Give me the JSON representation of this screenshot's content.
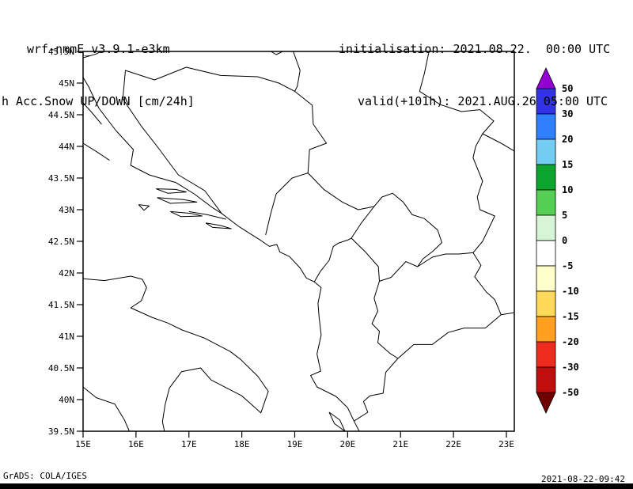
{
  "header": {
    "model": "wrf-nmmE_v3.9.1-e3km",
    "product": "h Acc.Snow UP/DOWN [cm/24h]",
    "init_label": "initialisation: 2021.08.22.  00:00 UTC",
    "valid_label": "valid(+101h): 2021.AUG.26 05:00 UTC"
  },
  "footer": {
    "credit": "GrADS: COLA/IGES",
    "timestamp": "2021-08-22-09:42"
  },
  "map": {
    "lat_ticks": [
      "45.5N",
      "45N",
      "44.5N",
      "44N",
      "43.5N",
      "43N",
      "42.5N",
      "42N",
      "41.5N",
      "41N",
      "40.5N",
      "40N",
      "39.5N"
    ],
    "lon_ticks": [
      "15E",
      "16E",
      "17E",
      "18E",
      "19E",
      "20E",
      "21E",
      "22E",
      "23E"
    ],
    "lat_range": [
      39.5,
      45.5
    ],
    "lon_range": [
      15,
      23.15
    ],
    "outline_color": "#000000",
    "outlines": {
      "adriatic_east_coast": [
        [
          14.85,
          45.3
        ],
        [
          15.1,
          44.95
        ],
        [
          15.3,
          44.6
        ],
        [
          15.62,
          44.25
        ],
        [
          15.95,
          43.95
        ],
        [
          15.9,
          43.7
        ],
        [
          16.25,
          43.55
        ],
        [
          16.45,
          43.5
        ],
        [
          16.75,
          43.43
        ],
        [
          17.1,
          43.25
        ],
        [
          17.45,
          43.03
        ],
        [
          17.62,
          42.94
        ],
        [
          17.95,
          42.73
        ],
        [
          18.12,
          42.64
        ],
        [
          18.35,
          42.52
        ],
        [
          18.52,
          42.42
        ],
        [
          18.66,
          42.45
        ],
        [
          18.72,
          42.33
        ],
        [
          18.9,
          42.26
        ],
        [
          19.1,
          42.08
        ],
        [
          19.22,
          41.92
        ],
        [
          19.37,
          41.86
        ],
        [
          19.5,
          41.77
        ],
        [
          19.44,
          41.52
        ],
        [
          19.46,
          41.3
        ],
        [
          19.5,
          41.02
        ],
        [
          19.42,
          40.72
        ],
        [
          19.49,
          40.45
        ],
        [
          19.3,
          40.38
        ],
        [
          19.42,
          40.2
        ],
        [
          19.78,
          40.05
        ],
        [
          20.0,
          39.87
        ],
        [
          20.12,
          39.66
        ],
        [
          20.25,
          39.45
        ]
      ],
      "island_pag": [
        [
          14.9,
          44.78
        ],
        [
          15.15,
          44.55
        ],
        [
          15.35,
          44.35
        ]
      ],
      "island_dugi_otok": [
        [
          15.0,
          44.05
        ],
        [
          15.25,
          43.92
        ],
        [
          15.5,
          43.78
        ]
      ],
      "island_brac": [
        [
          16.38,
          43.33
        ],
        [
          16.75,
          43.32
        ],
        [
          16.95,
          43.28
        ],
        [
          16.6,
          43.26
        ],
        [
          16.38,
          43.33
        ]
      ],
      "island_hvar": [
        [
          16.4,
          43.19
        ],
        [
          16.9,
          43.16
        ],
        [
          17.15,
          43.12
        ],
        [
          16.65,
          43.1
        ],
        [
          16.4,
          43.19
        ]
      ],
      "island_vis": [
        [
          16.05,
          43.08
        ],
        [
          16.25,
          43.06
        ],
        [
          16.15,
          42.99
        ],
        [
          16.05,
          43.08
        ]
      ],
      "island_korcula": [
        [
          16.65,
          42.97
        ],
        [
          17.05,
          42.94
        ],
        [
          17.25,
          42.9
        ],
        [
          16.85,
          42.89
        ],
        [
          16.65,
          42.97
        ]
      ],
      "island_mljet": [
        [
          17.32,
          42.79
        ],
        [
          17.6,
          42.75
        ],
        [
          17.8,
          42.7
        ],
        [
          17.45,
          42.72
        ],
        [
          17.32,
          42.79
        ]
      ],
      "peljesac_peninsula": [
        [
          17.7,
          42.85
        ],
        [
          17.35,
          42.92
        ],
        [
          17.0,
          42.97
        ]
      ],
      "island_corfu": [
        [
          19.65,
          39.8
        ],
        [
          19.85,
          39.68
        ],
        [
          19.95,
          39.5
        ],
        [
          19.75,
          39.62
        ],
        [
          19.65,
          39.8
        ]
      ],
      "italy_adriatic_coast": [
        [
          14.85,
          41.92
        ],
        [
          15.4,
          41.88
        ],
        [
          15.9,
          41.95
        ],
        [
          16.12,
          41.9
        ],
        [
          16.2,
          41.77
        ],
        [
          16.1,
          41.56
        ],
        [
          15.9,
          41.45
        ],
        [
          16.3,
          41.3
        ],
        [
          16.6,
          41.21
        ],
        [
          16.87,
          41.1
        ],
        [
          17.3,
          40.97
        ],
        [
          17.78,
          40.76
        ],
        [
          17.97,
          40.64
        ],
        [
          18.3,
          40.37
        ],
        [
          18.5,
          40.13
        ],
        [
          18.36,
          39.79
        ],
        [
          18.0,
          40.06
        ],
        [
          17.42,
          40.31
        ],
        [
          17.22,
          40.5
        ],
        [
          16.86,
          40.44
        ],
        [
          16.63,
          40.18
        ],
        [
          16.55,
          39.92
        ],
        [
          16.5,
          39.65
        ],
        [
          16.55,
          39.45
        ]
      ],
      "italy_tyrrhenian_coast": [
        [
          14.85,
          40.3
        ],
        [
          15.25,
          40.03
        ],
        [
          15.6,
          39.93
        ],
        [
          15.78,
          39.68
        ],
        [
          15.9,
          39.45
        ]
      ],
      "bosnia_border": [
        [
          17.62,
          42.94
        ],
        [
          17.3,
          43.3
        ],
        [
          16.8,
          43.55
        ],
        [
          16.4,
          44.0
        ],
        [
          16.1,
          44.32
        ],
        [
          15.75,
          44.75
        ],
        [
          15.8,
          45.2
        ],
        [
          16.35,
          45.05
        ],
        [
          16.95,
          45.25
        ],
        [
          17.6,
          45.12
        ],
        [
          18.3,
          45.1
        ],
        [
          18.7,
          45.0
        ],
        [
          19.0,
          44.87
        ],
        [
          19.33,
          44.65
        ],
        [
          19.35,
          44.35
        ],
        [
          19.6,
          44.05
        ],
        [
          19.28,
          43.95
        ],
        [
          19.25,
          43.58
        ],
        [
          18.95,
          43.5
        ],
        [
          18.65,
          43.25
        ],
        [
          18.55,
          42.95
        ],
        [
          18.45,
          42.6
        ]
      ],
      "croatia_serbia_border": [
        [
          18.95,
          45.55
        ],
        [
          19.1,
          45.2
        ],
        [
          19.05,
          44.95
        ],
        [
          19.0,
          44.87
        ]
      ],
      "slovenia_croatia_border": [
        [
          15.0,
          45.4
        ],
        [
          15.25,
          45.46
        ],
        [
          15.45,
          45.55
        ]
      ],
      "hungary_croatia_dip": [
        [
          18.45,
          45.55
        ],
        [
          18.65,
          45.45
        ],
        [
          18.9,
          45.55
        ]
      ],
      "serbia_romania_bulgaria_border": [
        [
          21.55,
          45.55
        ],
        [
          21.45,
          45.15
        ],
        [
          21.36,
          44.87
        ],
        [
          21.75,
          44.66
        ],
        [
          22.15,
          44.55
        ],
        [
          22.5,
          44.58
        ],
        [
          22.76,
          44.4
        ],
        [
          22.55,
          44.2
        ],
        [
          22.42,
          44.0
        ],
        [
          22.37,
          43.82
        ],
        [
          22.55,
          43.45
        ],
        [
          22.45,
          43.2
        ],
        [
          22.5,
          43.0
        ],
        [
          22.78,
          42.9
        ],
        [
          22.55,
          42.5
        ],
        [
          22.37,
          42.32
        ]
      ],
      "romania_bulgaria_border": [
        [
          22.55,
          44.2
        ],
        [
          22.9,
          44.05
        ],
        [
          23.2,
          43.9
        ]
      ],
      "kosovo_border": [
        [
          20.07,
          42.55
        ],
        [
          20.25,
          42.78
        ],
        [
          20.5,
          43.05
        ],
        [
          20.65,
          43.2
        ],
        [
          20.85,
          43.26
        ],
        [
          21.05,
          43.12
        ],
        [
          21.22,
          42.92
        ],
        [
          21.45,
          42.86
        ],
        [
          21.7,
          42.68
        ],
        [
          21.78,
          42.48
        ],
        [
          21.62,
          42.35
        ],
        [
          21.42,
          42.22
        ],
        [
          21.32,
          42.1
        ],
        [
          21.1,
          42.18
        ],
        [
          20.82,
          41.93
        ],
        [
          20.6,
          41.87
        ],
        [
          20.58,
          42.1
        ],
        [
          20.35,
          42.32
        ],
        [
          20.07,
          42.55
        ]
      ],
      "montenegro_serbia_border": [
        [
          19.25,
          43.58
        ],
        [
          19.55,
          43.32
        ],
        [
          19.9,
          43.12
        ],
        [
          20.2,
          43.0
        ],
        [
          20.5,
          43.05
        ]
      ],
      "montenegro_albania_border": [
        [
          19.37,
          41.86
        ],
        [
          19.48,
          42.02
        ],
        [
          19.65,
          42.2
        ],
        [
          19.73,
          42.42
        ],
        [
          19.82,
          42.47
        ],
        [
          20.0,
          42.52
        ],
        [
          20.07,
          42.55
        ]
      ],
      "albania_macedonia_border": [
        [
          20.6,
          41.87
        ],
        [
          20.5,
          41.6
        ],
        [
          20.57,
          41.4
        ],
        [
          20.46,
          41.2
        ],
        [
          20.6,
          41.08
        ],
        [
          20.57,
          40.9
        ],
        [
          20.8,
          40.73
        ],
        [
          20.95,
          40.65
        ]
      ],
      "albania_greece_border": [
        [
          20.95,
          40.65
        ],
        [
          20.72,
          40.43
        ],
        [
          20.67,
          40.1
        ],
        [
          20.42,
          40.06
        ],
        [
          20.3,
          39.97
        ],
        [
          20.38,
          39.8
        ],
        [
          20.12,
          39.66
        ]
      ],
      "macedonia_serbia_border": [
        [
          21.32,
          42.1
        ],
        [
          21.6,
          42.25
        ],
        [
          21.85,
          42.3
        ],
        [
          22.1,
          42.3
        ],
        [
          22.37,
          42.32
        ]
      ],
      "macedonia_bulgaria_border": [
        [
          22.37,
          42.32
        ],
        [
          22.52,
          42.12
        ],
        [
          22.4,
          41.94
        ],
        [
          22.62,
          41.7
        ],
        [
          22.78,
          41.58
        ],
        [
          22.9,
          41.34
        ]
      ],
      "macedonia_greece_border": [
        [
          22.9,
          41.34
        ],
        [
          22.6,
          41.13
        ],
        [
          22.2,
          41.13
        ],
        [
          21.9,
          41.06
        ],
        [
          21.6,
          40.87
        ],
        [
          21.25,
          40.87
        ],
        [
          20.95,
          40.65
        ]
      ],
      "bulgaria_greece_border": [
        [
          22.9,
          41.34
        ],
        [
          23.2,
          41.38
        ]
      ]
    }
  },
  "colorbar": {
    "labels": [
      "50",
      "30",
      "20",
      "15",
      "10",
      "5",
      "0",
      "-5",
      "-10",
      "-15",
      "-20",
      "-30",
      "-50"
    ],
    "segments": [
      "#3333e6",
      "#2f7fff",
      "#73ccf2",
      "#0ca52f",
      "#54cf54",
      "#d6f5d6",
      "#ffffff",
      "#ffffcc",
      "#ffd957",
      "#ffa01e",
      "#ee2c1e",
      "#c00d0d"
    ],
    "arrow_top": "#9400d3",
    "arrow_bottom": "#700000"
  }
}
